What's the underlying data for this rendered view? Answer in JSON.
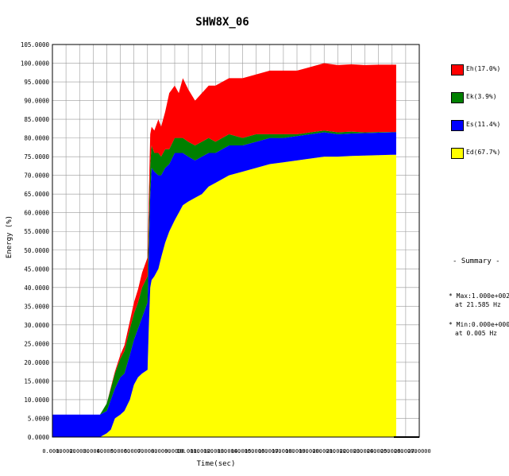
{
  "chart_data": {
    "type": "area",
    "title": "SHW8X_06",
    "xlabel": "Time(sec)",
    "ylabel": "Energy (%)",
    "xlim": [
      0,
      27
    ],
    "ylim": [
      0,
      105
    ],
    "x_ticks": [
      "0.0000",
      "1.0000",
      "2.0000",
      "3.0000",
      "4.0000",
      "5.0000",
      "6.0000",
      "7.0000",
      "8.0000",
      "9.0000",
      "10.0000",
      "11.0000",
      "12.0000",
      "13.0000",
      "14.0000",
      "15.0000",
      "16.0000",
      "17.0000",
      "18.0000",
      "19.0000",
      "20.0000",
      "21.0000",
      "22.0000",
      "23.0000",
      "24.0000",
      "25.0000",
      "26.0000",
      "27.0000"
    ],
    "y_ticks": [
      "0.0000",
      "5.0000",
      "10.0000",
      "15.0000",
      "20.0000",
      "25.0000",
      "30.0000",
      "35.0000",
      "40.0000",
      "45.0000",
      "50.0000",
      "55.0000",
      "60.0000",
      "65.0000",
      "70.0000",
      "75.0000",
      "80.0000",
      "85.0000",
      "90.0000",
      "95.0000",
      "100.0000",
      "105.0000"
    ],
    "grid": true,
    "legend_position": "right",
    "x": [
      0,
      1,
      2,
      3,
      3.5,
      4,
      4.3,
      4.6,
      5,
      5.3,
      5.7,
      6,
      6.3,
      6.6,
      7,
      7.1,
      7.2,
      7.3,
      7.5,
      7.8,
      8,
      8.3,
      8.6,
      9,
      9.3,
      9.6,
      10,
      10.5,
      11,
      11.5,
      12,
      13,
      14,
      15,
      16,
      17,
      18,
      19,
      20,
      21,
      22,
      23,
      24,
      25,
      25.3
    ],
    "series": [
      {
        "name": "Eh(17.0%)",
        "color": "#ff0000",
        "values": [
          0,
          0,
          0,
          0,
          0,
          0,
          0.3,
          0.5,
          1,
          1.5,
          2,
          3,
          3.5,
          4,
          5,
          7,
          8,
          5,
          6,
          9,
          8,
          10,
          15,
          14,
          12,
          16,
          14,
          12,
          13,
          14,
          15,
          15,
          16,
          16,
          17,
          17,
          17,
          17.5,
          18,
          18,
          18,
          18,
          18,
          18,
          18
        ]
      },
      {
        "name": "Ek(3.9%)",
        "color": "#008000",
        "values": [
          0,
          0,
          0,
          0,
          0,
          2,
          3,
          4,
          5,
          6,
          7,
          7,
          7,
          8,
          7,
          8,
          8,
          6,
          5,
          6,
          5,
          5,
          4,
          4,
          4,
          4,
          4,
          4,
          4,
          4,
          3,
          3,
          2,
          2,
          1,
          1,
          0.5,
          0.5,
          0.5,
          0.5,
          0.5,
          0.2,
          0.2,
          0.1,
          0.1
        ]
      },
      {
        "name": "Es(11.4%)",
        "color": "#0000ff",
        "values": [
          6,
          6,
          6,
          6,
          6,
          6,
          8,
          8,
          10,
          10,
          12,
          12,
          13,
          15,
          18,
          20,
          25,
          30,
          28,
          25,
          22,
          20,
          18,
          18,
          16,
          14,
          12,
          10,
          10,
          9,
          8,
          8,
          7,
          7,
          7,
          6.5,
          6.5,
          6.5,
          6.5,
          6,
          6,
          6,
          6,
          6,
          6
        ]
      },
      {
        "name": "Ed(67.7%)",
        "color": "#ffff00",
        "values": [
          0,
          0,
          0,
          0,
          0,
          1,
          2,
          5,
          6,
          7,
          10,
          14,
          16,
          17,
          18,
          30,
          40,
          42,
          43,
          45,
          48,
          52,
          55,
          58,
          60,
          62,
          63,
          64,
          65,
          67,
          68,
          70,
          71,
          72,
          73,
          73.5,
          74,
          74.5,
          75,
          75,
          75.2,
          75.3,
          75.4,
          75.5,
          75.5
        ]
      }
    ]
  },
  "summary": {
    "heading": "- Summary -",
    "max_line": "* Max:1.000e+002",
    "max_at": "at 21.585 Hz",
    "min_line": "* Min:0.000e+000",
    "min_at": "at  0.005 Hz"
  }
}
